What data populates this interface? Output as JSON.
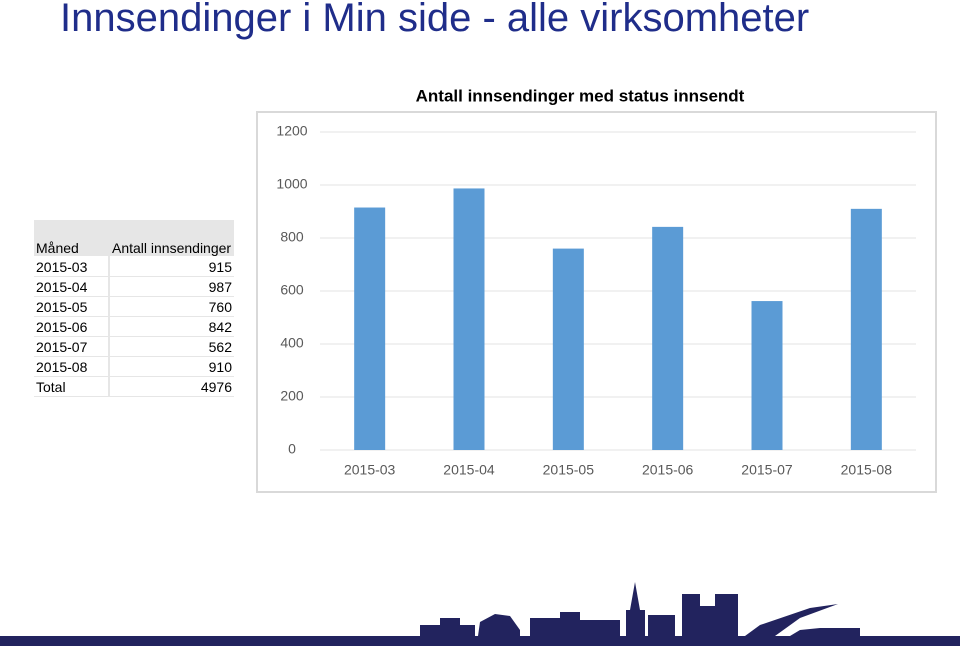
{
  "title": "Innsendinger i Min side -  alle virksomheter",
  "table": {
    "header": [
      "Måned",
      "Antall innsendinger"
    ],
    "rows": [
      [
        "2015-03",
        915
      ],
      [
        "2015-04",
        987
      ],
      [
        "2015-05",
        760
      ],
      [
        "2015-06",
        842
      ],
      [
        "2015-07",
        562
      ],
      [
        "2015-08",
        910
      ],
      [
        "Total",
        4976
      ]
    ]
  },
  "chart_data": {
    "type": "bar",
    "title": "Antall innsendinger med status innsendt",
    "categories": [
      "2015-03",
      "2015-04",
      "2015-05",
      "2015-06",
      "2015-07",
      "2015-08"
    ],
    "values": [
      915,
      987,
      760,
      842,
      562,
      910
    ],
    "color": "#5b9bd5",
    "ylim": [
      0,
      1200
    ],
    "yticks": [
      0,
      200,
      400,
      600,
      800,
      1000,
      1200
    ],
    "grid": true
  }
}
